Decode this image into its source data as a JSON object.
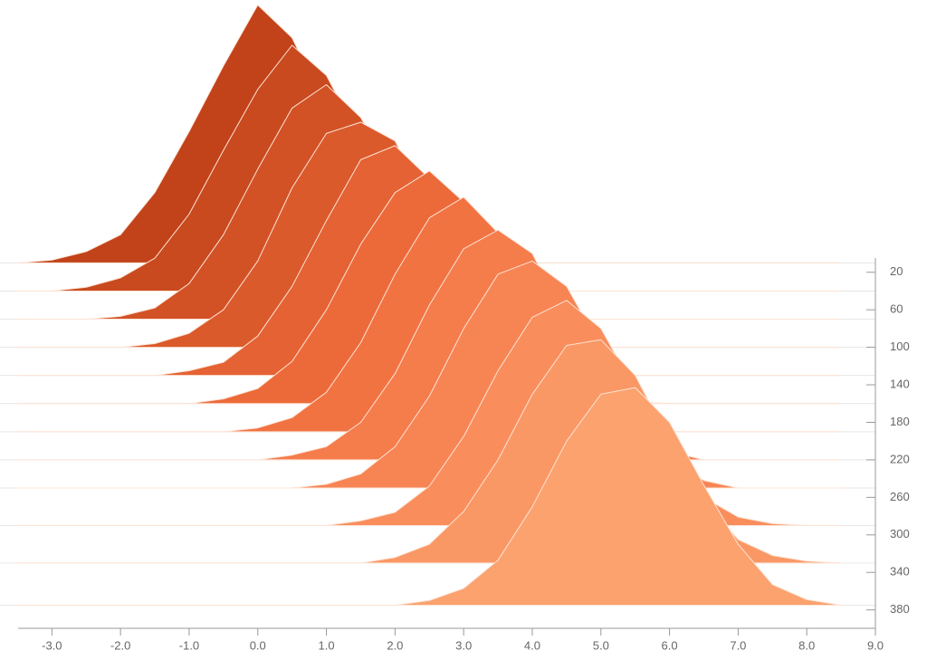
{
  "chart_data": {
    "type": "ridgeline",
    "x": [
      -3.5,
      -3,
      -2.5,
      -2,
      -1.5,
      -1,
      -0.5,
      0,
      0.5,
      1,
      1.5,
      2,
      2.5,
      3,
      3.5,
      4,
      4.5,
      5,
      5.5,
      6,
      6.5,
      7,
      7.5,
      8,
      8.5
    ],
    "xlim": [
      -3.4,
      9
    ],
    "xticks": [
      {
        "value": -3,
        "label": "-3.0"
      },
      {
        "value": -2,
        "label": "-2.0"
      },
      {
        "value": -1,
        "label": "-1.0"
      },
      {
        "value": 0,
        "label": "0.0"
      },
      {
        "value": 1,
        "label": "1.0"
      },
      {
        "value": 2,
        "label": "2.0"
      },
      {
        "value": 3,
        "label": "3.0"
      },
      {
        "value": 4,
        "label": "4.0"
      },
      {
        "value": 5,
        "label": "5.0"
      },
      {
        "value": 6,
        "label": "6.0"
      },
      {
        "value": 7,
        "label": "7.0"
      },
      {
        "value": 8,
        "label": "8.0"
      },
      {
        "value": 9,
        "label": "9.0"
      }
    ],
    "ylim": [
      0,
      400
    ],
    "yticks": [
      20,
      60,
      100,
      140,
      180,
      220,
      260,
      300,
      340,
      380
    ],
    "series": [
      {
        "baseline": 10,
        "color": "#c2431a",
        "values": [
          0,
          3,
          12,
          30,
          75,
          140,
          210,
          275,
          240,
          165,
          88,
          38,
          12,
          3,
          0,
          0,
          0,
          0,
          0,
          0,
          0,
          0,
          0,
          0,
          0
        ]
      },
      {
        "baseline": 40,
        "color": "#c94a1f",
        "values": [
          0,
          0,
          4,
          14,
          35,
          82,
          150,
          215,
          262,
          230,
          160,
          85,
          35,
          10,
          2,
          0,
          0,
          0,
          0,
          0,
          0,
          0,
          0,
          0,
          0
        ]
      },
      {
        "baseline": 70,
        "color": "#d25226",
        "values": [
          0,
          0,
          0,
          3,
          12,
          38,
          90,
          160,
          225,
          250,
          215,
          150,
          80,
          32,
          9,
          2,
          0,
          0,
          0,
          0,
          0,
          0,
          0,
          0,
          0
        ]
      },
      {
        "baseline": 100,
        "color": "#db5a2c",
        "values": [
          0,
          0,
          0,
          0,
          4,
          15,
          40,
          92,
          170,
          228,
          240,
          220,
          148,
          82,
          30,
          8,
          0,
          0,
          0,
          0,
          0,
          0,
          0,
          0,
          0
        ]
      },
      {
        "baseline": 130,
        "color": "#e46233",
        "values": [
          0,
          0,
          0,
          0,
          0,
          5,
          14,
          42,
          95,
          165,
          230,
          245,
          210,
          140,
          75,
          30,
          8,
          0,
          0,
          0,
          0,
          0,
          0,
          0,
          0
        ]
      },
      {
        "baseline": 160,
        "color": "#ec6a3a",
        "values": [
          0,
          0,
          0,
          0,
          0,
          0,
          5,
          16,
          45,
          100,
          170,
          225,
          248,
          215,
          145,
          80,
          30,
          8,
          2,
          0,
          0,
          0,
          0,
          0,
          0
        ]
      },
      {
        "baseline": 190,
        "color": "#f27342",
        "values": [
          0,
          0,
          0,
          0,
          0,
          0,
          0,
          4,
          15,
          42,
          95,
          168,
          228,
          250,
          212,
          150,
          78,
          30,
          8,
          0,
          0,
          0,
          0,
          0,
          0
        ]
      },
      {
        "baseline": 220,
        "color": "#f57c4b",
        "values": [
          0,
          0,
          0,
          0,
          0,
          0,
          0,
          0,
          5,
          14,
          40,
          92,
          165,
          225,
          245,
          220,
          148,
          80,
          32,
          9,
          0,
          0,
          0,
          0,
          0
        ]
      },
      {
        "baseline": 250,
        "color": "#f78554",
        "values": [
          0,
          0,
          0,
          0,
          0,
          0,
          0,
          0,
          0,
          4,
          15,
          44,
          98,
          170,
          228,
          242,
          215,
          150,
          80,
          30,
          8,
          0,
          0,
          0,
          0
        ]
      },
      {
        "baseline": 290,
        "color": "#f98e5c",
        "values": [
          0,
          0,
          0,
          0,
          0,
          0,
          0,
          0,
          0,
          0,
          5,
          14,
          42,
          95,
          165,
          222,
          240,
          210,
          145,
          78,
          30,
          9,
          2,
          0,
          0
        ]
      },
      {
        "baseline": 330,
        "color": "#fa9865",
        "values": [
          0,
          0,
          0,
          0,
          0,
          0,
          0,
          0,
          0,
          0,
          0,
          6,
          20,
          55,
          110,
          180,
          232,
          238,
          200,
          130,
          68,
          25,
          8,
          2,
          0
        ]
      },
      {
        "baseline": 375,
        "color": "#fba26e",
        "values": [
          0,
          0,
          0,
          0,
          0,
          0,
          0,
          0,
          0,
          0,
          0,
          0,
          5,
          18,
          48,
          105,
          175,
          225,
          232,
          195,
          128,
          65,
          22,
          6,
          0
        ]
      }
    ]
  }
}
